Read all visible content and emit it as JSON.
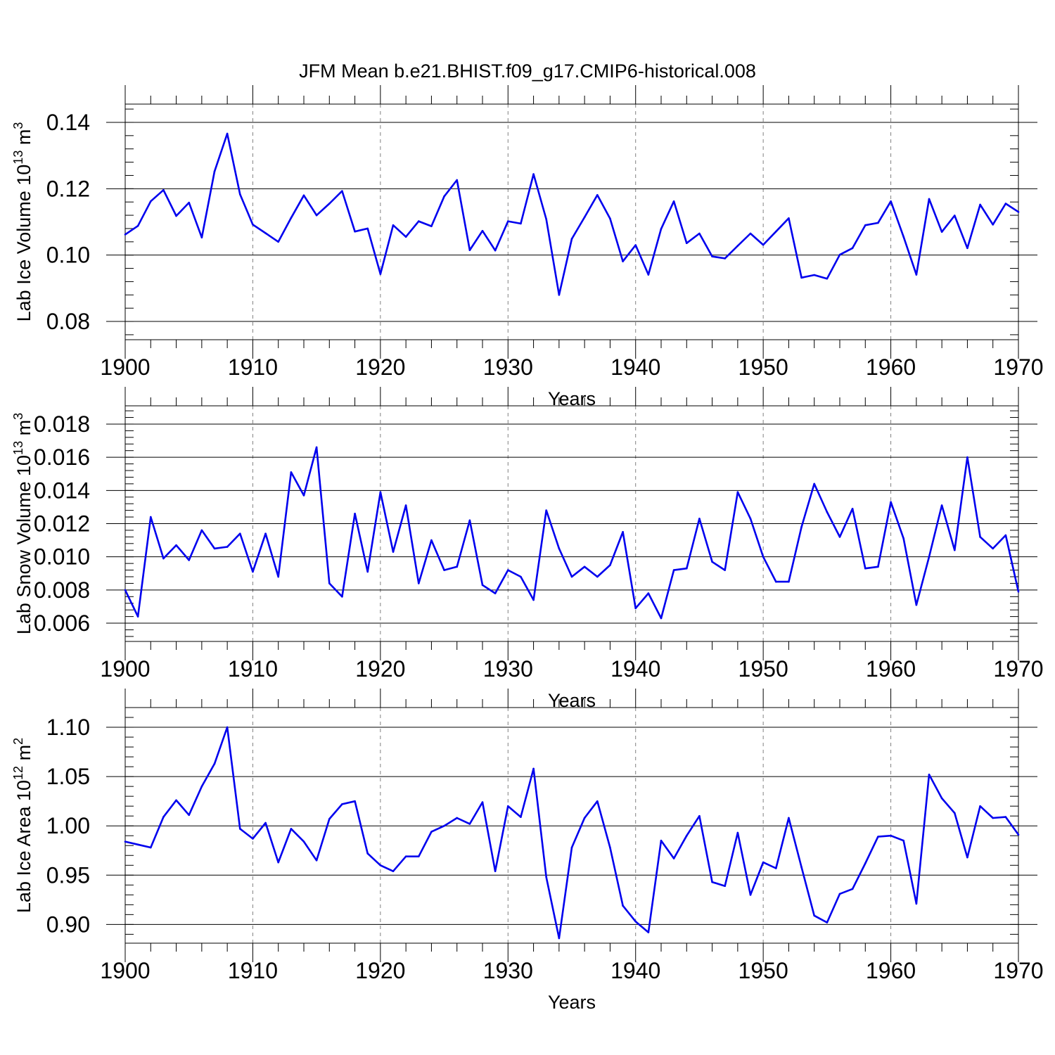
{
  "title": "JFM Mean b.e21.BHIST.f09_g17.CMIP6-historical.008",
  "colors": {
    "line": "#0000ee",
    "axis": "#000000",
    "grid": "#808080"
  },
  "chart_data": [
    {
      "type": "line",
      "ylabel_main": "Lab Ice Volume 10",
      "ylabel_exp": "13",
      "ylabel_unit": " m",
      "ylabel_unit_exp": "3",
      "xlabel": "Years",
      "xlim": [
        1900,
        1970
      ],
      "ylim": [
        0.0745,
        0.1455
      ],
      "xticks": [
        "1900",
        "1910",
        "1920",
        "1930",
        "1940",
        "1950",
        "1960",
        "1970"
      ],
      "yticks": [
        0.08,
        0.1,
        0.12,
        0.14
      ],
      "ytick_labels": [
        "0.08",
        "0.10",
        "0.12",
        "0.14"
      ],
      "x": [
        1900,
        1901,
        1902,
        1903,
        1904,
        1905,
        1906,
        1907,
        1908,
        1909,
        1910,
        1911,
        1912,
        1913,
        1914,
        1915,
        1916,
        1917,
        1918,
        1919,
        1920,
        1921,
        1922,
        1923,
        1924,
        1925,
        1926,
        1927,
        1928,
        1929,
        1930,
        1931,
        1932,
        1933,
        1934,
        1935,
        1936,
        1937,
        1938,
        1939,
        1940,
        1941,
        1942,
        1943,
        1944,
        1945,
        1946,
        1947,
        1948,
        1949,
        1950,
        1951,
        1952,
        1953,
        1954,
        1955,
        1956,
        1957,
        1958,
        1959,
        1960,
        1961,
        1962,
        1963,
        1964,
        1965,
        1966,
        1967,
        1968,
        1969,
        1970
      ],
      "values": [
        0.1062,
        0.1088,
        0.1162,
        0.1196,
        0.1118,
        0.1158,
        0.1053,
        0.1252,
        0.1366,
        0.1183,
        0.1092,
        0.1066,
        0.104,
        0.1112,
        0.118,
        0.112,
        0.1155,
        0.1193,
        0.1071,
        0.108,
        0.0943,
        0.109,
        0.1055,
        0.1102,
        0.1087,
        0.1177,
        0.1226,
        0.1015,
        0.1073,
        0.1014,
        0.1102,
        0.1095,
        0.1244,
        0.1108,
        0.088,
        0.1049,
        0.1114,
        0.1181,
        0.111,
        0.0981,
        0.103,
        0.0941,
        0.1079,
        0.1162,
        0.1036,
        0.1065,
        0.0996,
        0.099,
        0.1028,
        0.1065,
        0.1031,
        0.1071,
        0.1111,
        0.0932,
        0.094,
        0.0929,
        0.1001,
        0.1021,
        0.109,
        0.1097,
        0.1162,
        0.1055,
        0.0941,
        0.1169,
        0.107,
        0.1119,
        0.1021,
        0.1152,
        0.1092,
        0.1155,
        0.113
      ]
    },
    {
      "type": "line",
      "ylabel_main": "Lab Snow Volume 10",
      "ylabel_exp": "13",
      "ylabel_unit": " m",
      "ylabel_unit_exp": "3",
      "xlabel": "Years",
      "xlim": [
        1900,
        1970
      ],
      "ylim": [
        0.0049,
        0.0191
      ],
      "xticks": [
        "1900",
        "1910",
        "1920",
        "1930",
        "1940",
        "1950",
        "1960",
        "1970"
      ],
      "yticks": [
        0.006,
        0.008,
        0.01,
        0.012,
        0.014,
        0.016,
        0.018
      ],
      "ytick_labels": [
        "0.006",
        "0.008",
        "0.010",
        "0.012",
        "0.014",
        "0.016",
        "0.018"
      ],
      "x": [
        1900,
        1901,
        1902,
        1903,
        1904,
        1905,
        1906,
        1907,
        1908,
        1909,
        1910,
        1911,
        1912,
        1913,
        1914,
        1915,
        1916,
        1917,
        1918,
        1919,
        1920,
        1921,
        1922,
        1923,
        1924,
        1925,
        1926,
        1927,
        1928,
        1929,
        1930,
        1931,
        1932,
        1933,
        1934,
        1935,
        1936,
        1937,
        1938,
        1939,
        1940,
        1941,
        1942,
        1943,
        1944,
        1945,
        1946,
        1947,
        1948,
        1949,
        1950,
        1951,
        1952,
        1953,
        1954,
        1955,
        1956,
        1957,
        1958,
        1959,
        1960,
        1961,
        1962,
        1963,
        1964,
        1965,
        1966,
        1967,
        1968,
        1969,
        1970
      ],
      "values": [
        0.008,
        0.0064,
        0.0124,
        0.0099,
        0.0107,
        0.0098,
        0.0116,
        0.0105,
        0.0106,
        0.0114,
        0.0091,
        0.0114,
        0.0088,
        0.0151,
        0.0137,
        0.0166,
        0.0084,
        0.0076,
        0.0126,
        0.0091,
        0.0139,
        0.0103,
        0.0131,
        0.0084,
        0.011,
        0.0092,
        0.0094,
        0.0122,
        0.0083,
        0.0078,
        0.0092,
        0.0088,
        0.0074,
        0.0128,
        0.0105,
        0.0088,
        0.0094,
        0.0088,
        0.0095,
        0.0115,
        0.0069,
        0.0078,
        0.0063,
        0.0092,
        0.0093,
        0.0123,
        0.0097,
        0.0092,
        0.0139,
        0.0123,
        0.01,
        0.0085,
        0.0085,
        0.0118,
        0.0144,
        0.0127,
        0.0112,
        0.0129,
        0.0093,
        0.0094,
        0.0133,
        0.0111,
        0.0071,
        0.01,
        0.0131,
        0.0104,
        0.016,
        0.0112,
        0.0105,
        0.0113,
        0.0079
      ]
    },
    {
      "type": "line",
      "ylabel_main": "Lab Ice Area 10",
      "ylabel_exp": "12",
      "ylabel_unit": " m",
      "ylabel_unit_exp": "2",
      "xlabel": "Years",
      "xlim": [
        1900,
        1970
      ],
      "ylim": [
        0.881,
        1.12
      ],
      "xticks": [
        "1900",
        "1910",
        "1920",
        "1930",
        "1940",
        "1950",
        "1960",
        "1970"
      ],
      "yticks": [
        0.9,
        0.95,
        1.0,
        1.05,
        1.1
      ],
      "ytick_labels": [
        "0.90",
        "0.95",
        "1.00",
        "1.05",
        "1.10"
      ],
      "x": [
        1900,
        1901,
        1902,
        1903,
        1904,
        1905,
        1906,
        1907,
        1908,
        1909,
        1910,
        1911,
        1912,
        1913,
        1914,
        1915,
        1916,
        1917,
        1918,
        1919,
        1920,
        1921,
        1922,
        1923,
        1924,
        1925,
        1926,
        1927,
        1928,
        1929,
        1930,
        1931,
        1932,
        1933,
        1934,
        1935,
        1936,
        1937,
        1938,
        1939,
        1940,
        1941,
        1942,
        1943,
        1944,
        1945,
        1946,
        1947,
        1948,
        1949,
        1950,
        1951,
        1952,
        1953,
        1954,
        1955,
        1956,
        1957,
        1958,
        1959,
        1960,
        1961,
        1962,
        1963,
        1964,
        1965,
        1966,
        1967,
        1968,
        1969,
        1970
      ],
      "values": [
        0.984,
        0.981,
        0.978,
        1.009,
        1.026,
        1.011,
        1.04,
        1.063,
        1.1,
        0.997,
        0.987,
        1.003,
        0.963,
        0.997,
        0.984,
        0.965,
        1.007,
        1.022,
        1.025,
        0.972,
        0.96,
        0.954,
        0.969,
        0.969,
        0.994,
        1.0,
        1.008,
        1.002,
        1.024,
        0.954,
        1.02,
        1.009,
        1.058,
        0.948,
        0.886,
        0.978,
        1.008,
        1.025,
        0.978,
        0.919,
        0.903,
        0.892,
        0.985,
        0.967,
        0.99,
        1.01,
        0.943,
        0.939,
        0.993,
        0.93,
        0.963,
        0.957,
        1.008,
        0.958,
        0.909,
        0.902,
        0.931,
        0.936,
        0.962,
        0.989,
        0.99,
        0.985,
        0.921,
        1.052,
        1.028,
        1.013,
        0.968,
        1.02,
        1.008,
        1.009,
        0.991
      ]
    }
  ]
}
